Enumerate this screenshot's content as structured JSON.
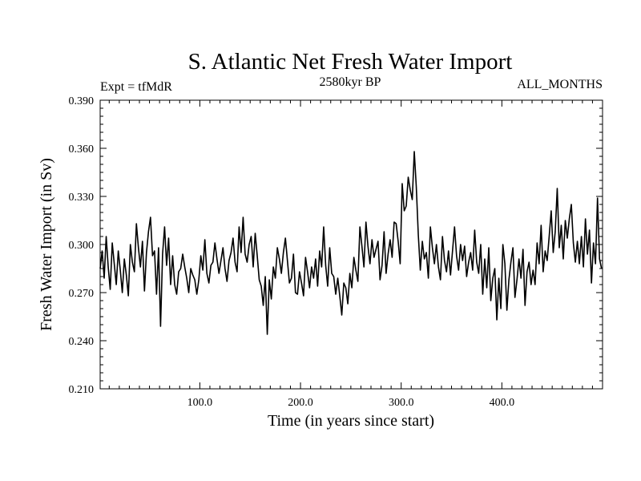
{
  "header": {
    "title": "S. Atlantic Net Fresh Water Import",
    "experiment": "Expt = tfMdR",
    "period": "2580kyr BP",
    "months": "ALL_MONTHS"
  },
  "chart_data": {
    "type": "line",
    "title": "S. Atlantic Net Fresh Water Import",
    "xlabel": "Time (in years since start)",
    "ylabel": "Fresh Water Import (in Sv)",
    "xlim": [
      1,
      500
    ],
    "ylim": [
      0.21,
      0.39
    ],
    "x_ticks": [
      100,
      200,
      300,
      400
    ],
    "x_tick_labels": [
      "100.0",
      "200.0",
      "300.0",
      "400.0"
    ],
    "y_ticks": [
      0.21,
      0.24,
      0.27,
      0.3,
      0.33,
      0.36,
      0.39
    ],
    "y_tick_labels": [
      "0.210",
      "0.240",
      "0.270",
      "0.300",
      "0.330",
      "0.360",
      "0.390"
    ],
    "grid": false,
    "line_color": "#000000",
    "series": [
      {
        "name": "Fresh Water Import",
        "x_start": 1,
        "x_step": 2,
        "values": [
          0.285,
          0.296,
          0.279,
          0.305,
          0.286,
          0.272,
          0.301,
          0.288,
          0.275,
          0.296,
          0.284,
          0.27,
          0.291,
          0.281,
          0.268,
          0.3,
          0.289,
          0.283,
          0.313,
          0.298,
          0.286,
          0.302,
          0.271,
          0.295,
          0.308,
          0.317,
          0.293,
          0.296,
          0.269,
          0.298,
          0.249,
          0.294,
          0.311,
          0.287,
          0.304,
          0.275,
          0.293,
          0.275,
          0.269,
          0.283,
          0.285,
          0.294,
          0.286,
          0.279,
          0.27,
          0.285,
          0.281,
          0.278,
          0.269,
          0.278,
          0.293,
          0.284,
          0.303,
          0.282,
          0.276,
          0.287,
          0.289,
          0.301,
          0.291,
          0.282,
          0.29,
          0.298,
          0.285,
          0.277,
          0.29,
          0.295,
          0.304,
          0.289,
          0.283,
          0.311,
          0.295,
          0.317,
          0.294,
          0.289,
          0.3,
          0.305,
          0.286,
          0.307,
          0.293,
          0.278,
          0.274,
          0.262,
          0.28,
          0.244,
          0.278,
          0.266,
          0.286,
          0.279,
          0.298,
          0.291,
          0.282,
          0.295,
          0.304,
          0.29,
          0.276,
          0.279,
          0.294,
          0.27,
          0.269,
          0.283,
          0.276,
          0.268,
          0.292,
          0.283,
          0.273,
          0.286,
          0.279,
          0.291,
          0.274,
          0.296,
          0.286,
          0.311,
          0.287,
          0.274,
          0.298,
          0.282,
          0.28,
          0.269,
          0.279,
          0.268,
          0.256,
          0.276,
          0.273,
          0.263,
          0.282,
          0.273,
          0.292,
          0.284,
          0.277,
          0.311,
          0.299,
          0.286,
          0.314,
          0.299,
          0.288,
          0.303,
          0.292,
          0.297,
          0.302,
          0.278,
          0.287,
          0.308,
          0.282,
          0.294,
          0.303,
          0.292,
          0.314,
          0.313,
          0.302,
          0.288,
          0.338,
          0.321,
          0.324,
          0.342,
          0.334,
          0.328,
          0.358,
          0.336,
          0.306,
          0.284,
          0.302,
          0.291,
          0.295,
          0.279,
          0.311,
          0.298,
          0.288,
          0.3,
          0.286,
          0.278,
          0.305,
          0.29,
          0.283,
          0.296,
          0.281,
          0.296,
          0.311,
          0.293,
          0.284,
          0.3,
          0.29,
          0.299,
          0.28,
          0.289,
          0.295,
          0.284,
          0.309,
          0.289,
          0.282,
          0.3,
          0.269,
          0.291,
          0.273,
          0.298,
          0.265,
          0.279,
          0.285,
          0.253,
          0.279,
          0.26,
          0.3,
          0.288,
          0.259,
          0.278,
          0.289,
          0.298,
          0.267,
          0.278,
          0.291,
          0.279,
          0.297,
          0.262,
          0.283,
          0.289,
          0.275,
          0.284,
          0.275,
          0.301,
          0.288,
          0.312,
          0.283,
          0.296,
          0.29,
          0.305,
          0.321,
          0.295,
          0.308,
          0.335,
          0.298,
          0.312,
          0.291,
          0.315,
          0.304,
          0.316,
          0.325,
          0.301,
          0.289,
          0.302,
          0.288,
          0.305,
          0.286,
          0.316,
          0.294,
          0.309,
          0.276,
          0.301,
          0.288,
          0.329,
          0.291,
          0.285
        ]
      }
    ]
  }
}
